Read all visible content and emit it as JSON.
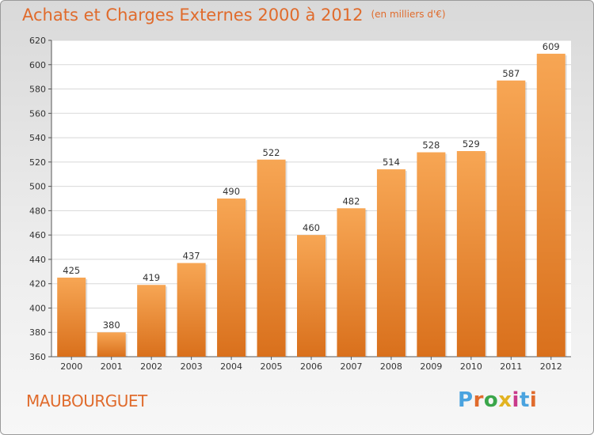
{
  "chart_data": {
    "type": "bar",
    "title": "Achats et Charges Externes 2000 à 2012",
    "unit_note": "(en milliers d'€)",
    "categories": [
      "2000",
      "2001",
      "2002",
      "2003",
      "2004",
      "2005",
      "2006",
      "2007",
      "2008",
      "2009",
      "2010",
      "2011",
      "2012"
    ],
    "values": [
      425,
      380,
      419,
      437,
      490,
      522,
      460,
      482,
      514,
      528,
      529,
      587,
      609
    ],
    "ylim": [
      360,
      620
    ],
    "yticks": [
      360,
      380,
      400,
      420,
      440,
      460,
      480,
      500,
      520,
      540,
      560,
      580,
      600,
      620
    ],
    "grid": true,
    "bar_color_top": "#f7a654",
    "bar_color_bottom": "#d9701c"
  },
  "footer": {
    "city": "MAUBOURGUET",
    "logo_text": "Proxiti",
    "logo_colors": [
      "#4aa3df",
      "#e06b2c",
      "#3aa64a",
      "#e2b321",
      "#c93a8a",
      "#4aa3df",
      "#e06b2c"
    ]
  }
}
